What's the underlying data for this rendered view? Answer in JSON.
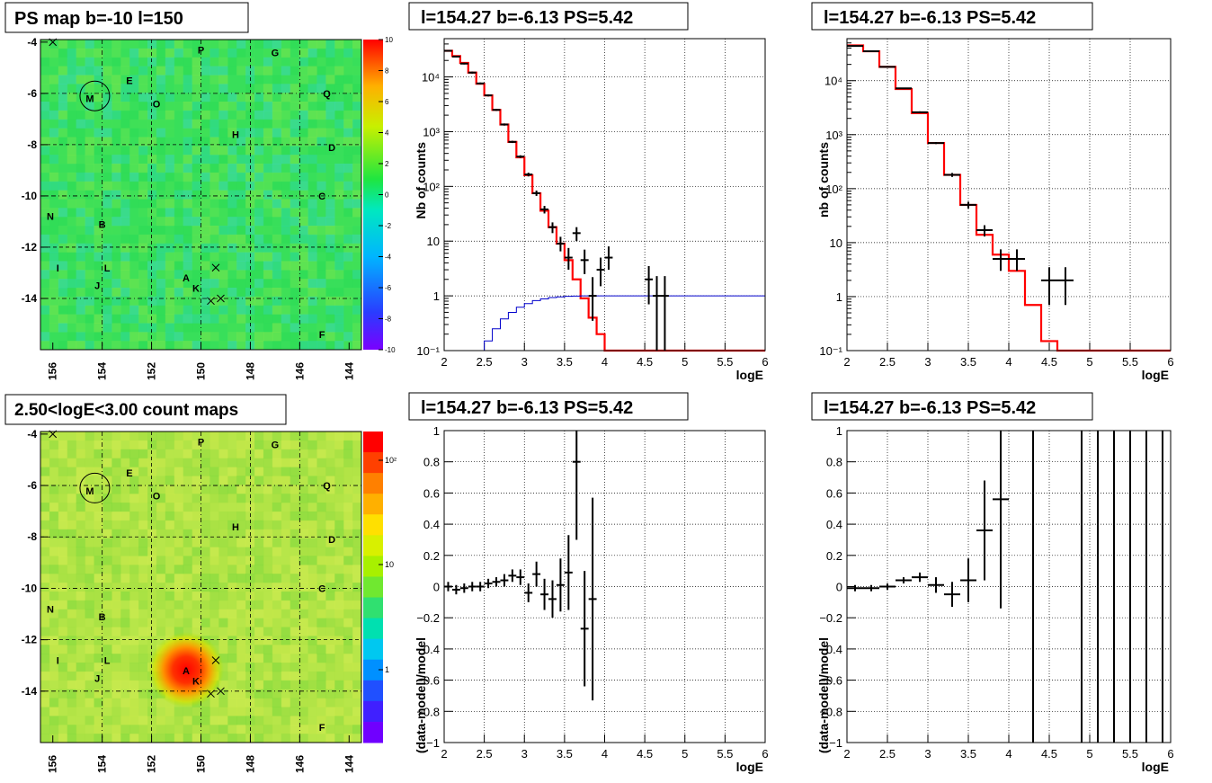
{
  "panels": {
    "map_top_title": "PS map b=-10 l=150",
    "map_bottom_title": "2.50<logE<3.00 count maps",
    "spec1_title": "l=154.27 b=-6.13 PS=5.42",
    "spec2_title": "l=154.27 b=-6.13 PS=5.42",
    "res1_title": "l=154.27 b=-6.13 PS=5.42",
    "res2_title": "l=154.27 b=-6.13 PS=5.42"
  },
  "maps": {
    "x_ticks": [
      "156",
      "154",
      "152",
      "150",
      "148",
      "146",
      "144"
    ],
    "y_ticks": [
      "-4",
      "-6",
      "-8",
      "-10",
      "-12",
      "-14"
    ],
    "letters": [
      {
        "t": "P",
        "l": 150.0,
        "b": -4.3
      },
      {
        "t": "G",
        "l": 147.0,
        "b": -4.4
      },
      {
        "t": "E",
        "l": 152.9,
        "b": -5.5
      },
      {
        "t": "M",
        "l": 154.5,
        "b": -6.2
      },
      {
        "t": "O",
        "l": 151.8,
        "b": -6.4
      },
      {
        "t": "Q",
        "l": 144.9,
        "b": -6.0
      },
      {
        "t": "H",
        "l": 148.6,
        "b": -7.6
      },
      {
        "t": "D",
        "l": 144.7,
        "b": -8.1
      },
      {
        "t": "C",
        "l": 145.1,
        "b": -10.0
      },
      {
        "t": "N",
        "l": 156.1,
        "b": -10.8
      },
      {
        "t": "B",
        "l": 154.0,
        "b": -11.1
      },
      {
        "t": "I",
        "l": 155.8,
        "b": -12.8
      },
      {
        "t": "L",
        "l": 153.8,
        "b": -12.8
      },
      {
        "t": "J",
        "l": 154.2,
        "b": -13.5
      },
      {
        "t": "A",
        "l": 150.6,
        "b": -13.2
      },
      {
        "t": "K",
        "l": 150.2,
        "b": -13.6
      },
      {
        "t": "F",
        "l": 145.1,
        "b": -15.4
      }
    ],
    "crosses": [
      {
        "l": 149.4,
        "b": -12.8
      },
      {
        "l": 149.6,
        "b": -14.1
      },
      {
        "l": 149.2,
        "b": -14.0
      },
      {
        "l": 156.0,
        "b": -4.0
      }
    ],
    "circle": {
      "l": 154.3,
      "b": -6.1,
      "r": 0.6
    },
    "top_palette_labels": [
      "10",
      "8",
      "6",
      "4",
      "2",
      "0",
      "-2",
      "-4",
      "-6",
      "-8",
      "-10"
    ],
    "bottom_palette_labels": [
      "10²",
      "10",
      "1"
    ]
  },
  "chart_data": [
    {
      "type": "line",
      "title": "l=154.27 b=-6.13 PS=5.42",
      "xlabel": "logE",
      "ylabel": "Nb of counts",
      "xlim": [
        2,
        6
      ],
      "ylim": [
        0.1,
        50000
      ],
      "yscale": "log",
      "x_ticks": [
        "2",
        "2.5",
        "3",
        "3.5",
        "4",
        "4.5",
        "5",
        "5.5",
        "6"
      ],
      "y_ticks": [
        "10⁻¹",
        "1",
        "10",
        "10²",
        "10³",
        "10⁴"
      ],
      "edges": [
        2.0,
        2.1,
        2.2,
        2.3,
        2.4,
        2.5,
        2.6,
        2.7,
        2.8,
        2.9,
        3.0,
        3.1,
        3.2,
        3.3,
        3.4,
        3.5,
        3.6,
        3.7,
        3.8,
        3.9,
        4.0,
        4.1,
        4.2,
        4.3,
        4.4,
        4.5,
        4.6,
        4.7,
        4.8,
        4.9,
        5.0,
        5.1,
        5.2,
        5.3,
        5.4,
        5.5,
        5.6,
        5.7,
        5.8,
        5.9,
        6.0
      ],
      "series": [
        {
          "name": "",
          "color": "#ff0000",
          "values": [
            30000,
            24000,
            18000,
            12000,
            7500,
            4600,
            2500,
            1350,
            650,
            340,
            160,
            75,
            36,
            18,
            9,
            4.5,
            2,
            0.9,
            0.4,
            0.2,
            0.1,
            0.1,
            0.1,
            0.1,
            0.1,
            0.1,
            0.1,
            0.1,
            0.1,
            0.1,
            0.1,
            0.1,
            0.1,
            0.1,
            0.1,
            0.1,
            0.1,
            0.1,
            0.1,
            0.1
          ]
        },
        {
          "name": "",
          "color": "#0000cc",
          "values": [
            0.1,
            0.1,
            0.1,
            0.1,
            0.1,
            0.15,
            0.25,
            0.38,
            0.5,
            0.62,
            0.72,
            0.82,
            0.88,
            0.93,
            0.96,
            0.98,
            0.99,
            1,
            1,
            1,
            1,
            1,
            1,
            1,
            1,
            1,
            1,
            1,
            1,
            1,
            1,
            1,
            1,
            1,
            1,
            1,
            1,
            1,
            1,
            1
          ]
        }
      ],
      "points": [
        {
          "x": 2.05,
          "y": 30000,
          "lo": 29000,
          "hi": 31000
        },
        {
          "x": 2.15,
          "y": 23500,
          "lo": 22800,
          "hi": 24200
        },
        {
          "x": 2.25,
          "y": 17500,
          "lo": 16900,
          "hi": 18100
        },
        {
          "x": 2.35,
          "y": 12000,
          "lo": 11500,
          "hi": 12500
        },
        {
          "x": 2.45,
          "y": 7600,
          "lo": 7300,
          "hi": 7900
        },
        {
          "x": 2.55,
          "y": 4600,
          "lo": 4400,
          "hi": 4800
        },
        {
          "x": 2.65,
          "y": 2500,
          "lo": 2400,
          "hi": 2600
        },
        {
          "x": 2.75,
          "y": 1350,
          "lo": 1290,
          "hi": 1410
        },
        {
          "x": 2.85,
          "y": 650,
          "lo": 620,
          "hi": 680
        },
        {
          "x": 2.95,
          "y": 350,
          "lo": 330,
          "hi": 370
        },
        {
          "x": 3.05,
          "y": 165,
          "lo": 152,
          "hi": 178
        },
        {
          "x": 3.15,
          "y": 75,
          "lo": 67,
          "hi": 84
        },
        {
          "x": 3.25,
          "y": 38,
          "lo": 32,
          "hi": 44
        },
        {
          "x": 3.35,
          "y": 18,
          "lo": 14,
          "hi": 22
        },
        {
          "x": 3.45,
          "y": 9,
          "lo": 6.5,
          "hi": 12
        },
        {
          "x": 3.55,
          "y": 5,
          "lo": 3,
          "hi": 7.5
        },
        {
          "x": 3.65,
          "y": 14,
          "lo": 10,
          "hi": 18
        },
        {
          "x": 3.75,
          "y": 4.5,
          "lo": 2.5,
          "hi": 7
        },
        {
          "x": 3.85,
          "y": 1.0,
          "lo": 0.35,
          "hi": 2.2
        },
        {
          "x": 3.95,
          "y": 3,
          "lo": 1.5,
          "hi": 5
        },
        {
          "x": 4.05,
          "y": 5,
          "lo": 3,
          "hi": 8
        },
        {
          "x": 4.55,
          "y": 2,
          "lo": 0.7,
          "hi": 3.5
        },
        {
          "x": 4.65,
          "y": 1,
          "lo": 0.1,
          "hi": 2.3
        },
        {
          "x": 4.75,
          "y": 1,
          "lo": 0.1,
          "hi": 2.3
        }
      ]
    },
    {
      "type": "line",
      "title": "l=154.27 b=-6.13 PS=5.42",
      "xlabel": "logE",
      "ylabel": "nb of counts",
      "xlim": [
        2,
        6
      ],
      "ylim": [
        0.1,
        60000
      ],
      "yscale": "log",
      "x_ticks": [
        "2",
        "2.5",
        "3",
        "3.5",
        "4",
        "4.5",
        "5",
        "5.5",
        "6"
      ],
      "y_ticks": [
        "10⁻¹",
        "1",
        "10",
        "10²",
        "10³",
        "10⁴"
      ],
      "edges": [
        2.0,
        2.2,
        2.4,
        2.6,
        2.8,
        3.0,
        3.2,
        3.4,
        3.6,
        3.8,
        4.0,
        4.2,
        4.4,
        4.6,
        4.8,
        5.0,
        5.2,
        5.4,
        5.6,
        5.8,
        6.0
      ],
      "series": [
        {
          "name": "",
          "color": "#ff0000",
          "values": [
            45000,
            35000,
            18000,
            7000,
            2500,
            700,
            180,
            50,
            14,
            6,
            3,
            0.7,
            0.15,
            0.1,
            0.1,
            0.1,
            0.1,
            0.1,
            0.1,
            0.1
          ]
        }
      ],
      "points": [
        {
          "x": 2.1,
          "y": 44000,
          "lo": 43500,
          "hi": 44500
        },
        {
          "x": 2.3,
          "y": 35000,
          "lo": 34500,
          "hi": 35500
        },
        {
          "x": 2.5,
          "y": 18000,
          "lo": 17700,
          "hi": 18300
        },
        {
          "x": 2.7,
          "y": 7200,
          "lo": 7000,
          "hi": 7400
        },
        {
          "x": 2.9,
          "y": 2600,
          "lo": 2500,
          "hi": 2700
        },
        {
          "x": 3.1,
          "y": 700,
          "lo": 670,
          "hi": 730
        },
        {
          "x": 3.3,
          "y": 180,
          "lo": 165,
          "hi": 195
        },
        {
          "x": 3.5,
          "y": 50,
          "lo": 43,
          "hi": 57
        },
        {
          "x": 3.7,
          "y": 17,
          "lo": 13,
          "hi": 21
        },
        {
          "x": 3.9,
          "y": 5,
          "lo": 3,
          "hi": 7.5
        },
        {
          "x": 4.1,
          "y": 5,
          "lo": 3,
          "hi": 7.5
        },
        {
          "x": 4.5,
          "y": 2,
          "lo": 0.7,
          "hi": 3.5
        },
        {
          "x": 4.7,
          "y": 2,
          "lo": 0.7,
          "hi": 3.5
        }
      ]
    },
    {
      "type": "scatter",
      "title": "l=154.27 b=-6.13 PS=5.42",
      "xlabel": "logE",
      "ylabel": "(data-model)/model",
      "xlim": [
        2,
        6
      ],
      "ylim": [
        -1,
        1
      ],
      "x_ticks": [
        "2",
        "2.5",
        "3",
        "3.5",
        "4",
        "4.5",
        "5",
        "5.5",
        "6"
      ],
      "y_ticks": [
        "−1",
        "−0.8",
        "−0.6",
        "−0.4",
        "−0.2",
        "0",
        "0.2",
        "0.4",
        "0.6",
        "0.8",
        "1"
      ],
      "points": [
        {
          "x": 2.05,
          "y": 0.0,
          "e": 0.03
        },
        {
          "x": 2.15,
          "y": -0.02,
          "e": 0.03
        },
        {
          "x": 2.25,
          "y": -0.01,
          "e": 0.03
        },
        {
          "x": 2.35,
          "y": 0.0,
          "e": 0.03
        },
        {
          "x": 2.45,
          "y": 0.0,
          "e": 0.03
        },
        {
          "x": 2.55,
          "y": 0.02,
          "e": 0.03
        },
        {
          "x": 2.65,
          "y": 0.03,
          "e": 0.03
        },
        {
          "x": 2.75,
          "y": 0.04,
          "e": 0.04
        },
        {
          "x": 2.85,
          "y": 0.07,
          "e": 0.04
        },
        {
          "x": 2.95,
          "y": 0.06,
          "e": 0.05
        },
        {
          "x": 3.05,
          "y": -0.04,
          "e": 0.06
        },
        {
          "x": 3.15,
          "y": 0.08,
          "e": 0.08
        },
        {
          "x": 3.25,
          "y": -0.05,
          "e": 0.1
        },
        {
          "x": 3.35,
          "y": -0.08,
          "e": 0.12
        },
        {
          "x": 3.45,
          "y": 0.01,
          "e": 0.17
        },
        {
          "x": 3.55,
          "y": 0.09,
          "e": 0.24
        },
        {
          "x": 3.65,
          "y": 0.8,
          "e": 0.5
        },
        {
          "x": 3.75,
          "y": -0.27,
          "e": 0.37
        },
        {
          "x": 3.85,
          "y": -0.08,
          "e": 0.65
        }
      ]
    },
    {
      "type": "scatter",
      "title": "l=154.27 b=-6.13 PS=5.42",
      "xlabel": "logE",
      "ylabel": "(data-model)/model",
      "xlim": [
        2,
        6
      ],
      "ylim": [
        -1,
        1
      ],
      "x_ticks": [
        "2",
        "2.5",
        "3",
        "3.5",
        "4",
        "4.5",
        "5",
        "5.5",
        "6"
      ],
      "y_ticks": [
        "−1",
        "−0.8",
        "−0.6",
        "−0.4",
        "−0.2",
        "0",
        "0.2",
        "0.4",
        "0.6",
        "0.8",
        "1"
      ],
      "points": [
        {
          "x": 2.1,
          "y": -0.01,
          "e": 0.02
        },
        {
          "x": 2.3,
          "y": -0.01,
          "e": 0.02
        },
        {
          "x": 2.5,
          "y": 0.0,
          "e": 0.02
        },
        {
          "x": 2.7,
          "y": 0.04,
          "e": 0.02
        },
        {
          "x": 2.9,
          "y": 0.06,
          "e": 0.03
        },
        {
          "x": 3.1,
          "y": 0.01,
          "e": 0.05
        },
        {
          "x": 3.3,
          "y": -0.05,
          "e": 0.08
        },
        {
          "x": 3.5,
          "y": 0.04,
          "e": 0.14
        },
        {
          "x": 3.7,
          "y": 0.36,
          "e": 0.32
        },
        {
          "x": 3.9,
          "y": 0.56,
          "e": 0.7
        }
      ],
      "vlines": [
        4.3,
        4.9,
        5.1,
        5.3,
        5.5,
        5.7,
        5.9
      ]
    }
  ]
}
